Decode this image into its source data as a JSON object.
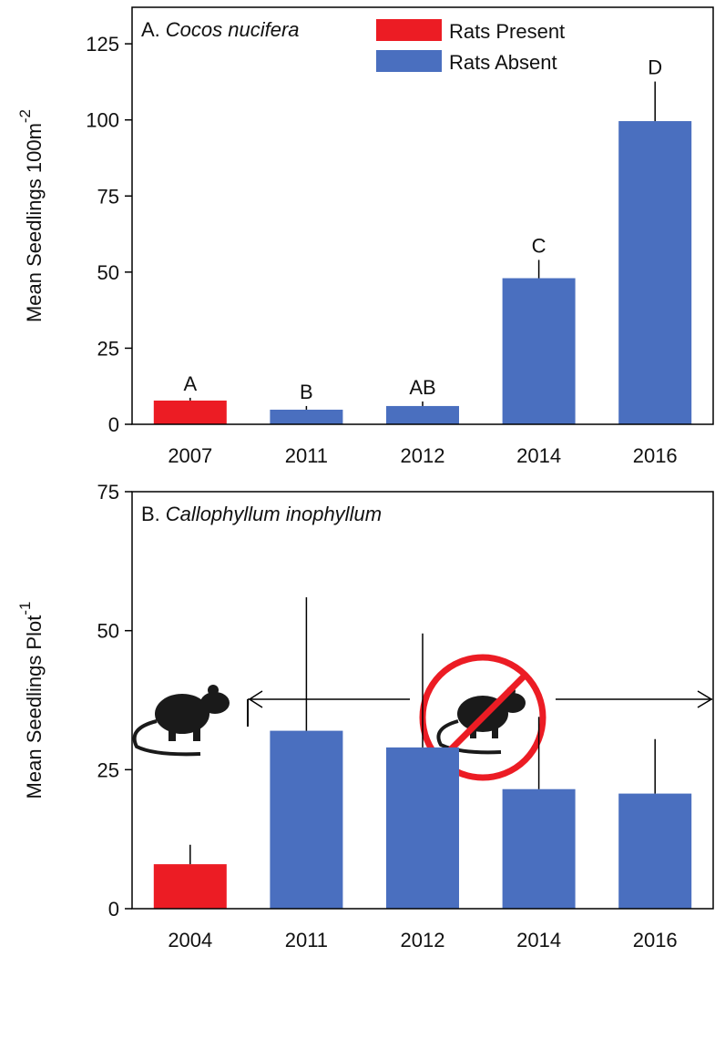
{
  "chart_data": [
    {
      "type": "bar",
      "panel_label": "A.",
      "title": "Cocos nucifera",
      "ylabel": "Mean Seedlings 100m",
      "ylabel_superscript": "-2",
      "categories": [
        "2007",
        "2011",
        "2012",
        "2014",
        "2016"
      ],
      "series": [
        {
          "name": "Rats Present",
          "color": "#ec1c24",
          "values": [
            7.8,
            null,
            null,
            null,
            null
          ],
          "errors": [
            0.9,
            null,
            null,
            null,
            null
          ]
        },
        {
          "name": "Rats Absent",
          "color": "#4a6fbf",
          "values": [
            null,
            4.8,
            6,
            48,
            99.6
          ],
          "errors": [
            null,
            1.2,
            1.5,
            6,
            13
          ]
        }
      ],
      "annotations": [
        "A",
        "B",
        "AB",
        "C",
        "D"
      ],
      "ylim": [
        0,
        137
      ],
      "yticks": [
        0,
        25,
        50,
        75,
        100,
        125
      ],
      "legend": "upper center"
    },
    {
      "type": "bar",
      "panel_label": "B.",
      "title": "Callophyllum inophyllum",
      "ylabel": "Mean Seedlings Plot",
      "ylabel_superscript": "-1",
      "categories": [
        "2004",
        "2011",
        "2012",
        "2014",
        "2016"
      ],
      "series": [
        {
          "name": "Rats Present",
          "color": "#ec1c24",
          "values": [
            8,
            null,
            null,
            null,
            null
          ],
          "errors": [
            3.5,
            null,
            null,
            null,
            null
          ]
        },
        {
          "name": "Rats Absent",
          "color": "#4a6fbf",
          "values": [
            null,
            32,
            29,
            21.5,
            20.7
          ],
          "errors": [
            null,
            24,
            20.5,
            13,
            9.8
          ]
        }
      ],
      "ylim": [
        0,
        75
      ],
      "yticks": [
        0,
        25,
        50,
        75
      ]
    }
  ]
}
